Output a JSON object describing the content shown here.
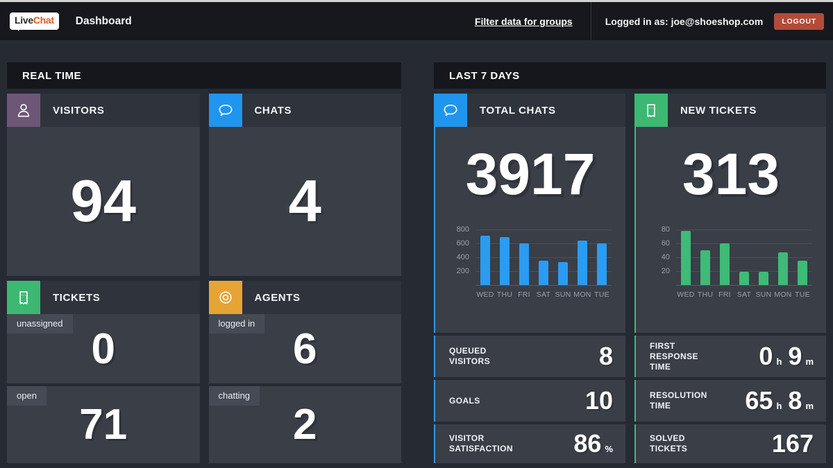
{
  "topbar": {
    "logo_live": "Live",
    "logo_chat": "Chat",
    "title": "Dashboard",
    "filter_link": "Filter data for groups",
    "logged_in_label": "Logged in as:",
    "email": "joe@shoeshop.com",
    "logout_label": "LOGOUT"
  },
  "colors": {
    "accent_blue": "#2a9cf4",
    "accent_green": "#3dbb77",
    "visitors_purple": "#6e5677",
    "chats_blue": "#2095ee",
    "tickets_green": "#3cb873",
    "agents_orange": "#e7a435",
    "logout_red": "#b24b39"
  },
  "icons": {
    "visitors": "person-icon",
    "chats": "chat-bubble-icon",
    "tickets": "ticket-icon",
    "agents": "lifebuoy-icon",
    "total_chats": "chat-bubble-icon",
    "new_tickets": "ticket-icon"
  },
  "realtime": {
    "header": "REAL TIME",
    "visitors": {
      "label": "VISITORS",
      "value": "94"
    },
    "chats": {
      "label": "CHATS",
      "value": "4"
    },
    "tickets": {
      "label": "TICKETS",
      "rows": [
        {
          "tag": "unassigned",
          "value": "0"
        },
        {
          "tag": "open",
          "value": "71"
        }
      ]
    },
    "agents": {
      "label": "AGENTS",
      "rows": [
        {
          "tag": "logged in",
          "value": "6"
        },
        {
          "tag": "chatting",
          "value": "2"
        }
      ]
    }
  },
  "last7days": {
    "header": "LAST 7 DAYS",
    "total_chats": {
      "label": "TOTAL CHATS",
      "big_value": "3917",
      "stats": [
        {
          "lines": [
            "QUEUED",
            "VISITORS"
          ],
          "parts": [
            {
              "v": "8"
            }
          ]
        },
        {
          "lines": [
            "GOALS"
          ],
          "parts": [
            {
              "v": "10"
            }
          ]
        },
        {
          "lines": [
            "VISITOR",
            "SATISFACTION"
          ],
          "parts": [
            {
              "v": "86",
              "u": "%"
            }
          ]
        }
      ]
    },
    "new_tickets": {
      "label": "NEW TICKETS",
      "big_value": "313",
      "stats": [
        {
          "lines": [
            "FIRST",
            "RESPONSE",
            "TIME"
          ],
          "parts": [
            {
              "v": "0",
              "u": "h"
            },
            {
              "v": "9",
              "u": "m"
            }
          ]
        },
        {
          "lines": [
            "RESOLUTION",
            "TIME"
          ],
          "parts": [
            {
              "v": "65",
              "u": "h"
            },
            {
              "v": "8",
              "u": "m"
            }
          ]
        },
        {
          "lines": [
            "SOLVED",
            "TICKETS"
          ],
          "parts": [
            {
              "v": "167"
            }
          ]
        }
      ]
    }
  },
  "chart_data": [
    {
      "type": "bar",
      "title": "TOTAL CHATS",
      "categories": [
        "WED",
        "THU",
        "FRI",
        "SAT",
        "SUN",
        "MON",
        "TUE"
      ],
      "values": [
        710,
        690,
        600,
        350,
        330,
        640,
        600
      ],
      "ylim": [
        0,
        800
      ],
      "yticks": [
        200,
        400,
        600,
        800
      ],
      "bar_color": "#2a9cf4",
      "xlabel": "",
      "ylabel": "",
      "grid": true,
      "legend": false
    },
    {
      "type": "bar",
      "title": "NEW TICKETS",
      "categories": [
        "WED",
        "THU",
        "FRI",
        "SAT",
        "SUN",
        "MON",
        "TUE"
      ],
      "values": [
        78,
        50,
        60,
        19,
        19,
        47,
        35
      ],
      "ylim": [
        0,
        80
      ],
      "yticks": [
        20,
        40,
        60,
        80
      ],
      "bar_color": "#3dbb77",
      "xlabel": "",
      "ylabel": "",
      "grid": true,
      "legend": false
    }
  ]
}
